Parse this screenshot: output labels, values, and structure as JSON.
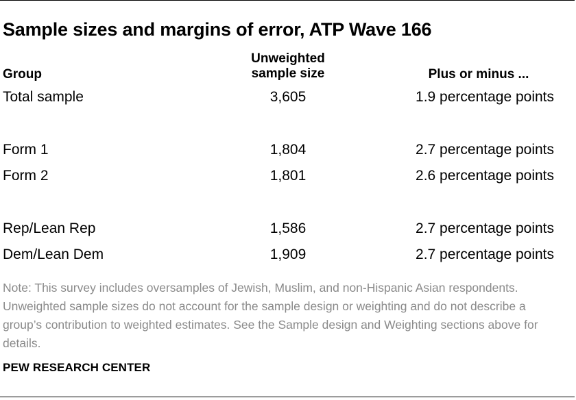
{
  "title": "Sample sizes and margins of error, ATP Wave 166",
  "table": {
    "headers": {
      "group": "Group",
      "size_line1": "Unweighted",
      "size_line2": "sample size",
      "moe": "Plus or minus ..."
    },
    "rows": [
      {
        "group": "Total sample",
        "size": "3,605",
        "moe": "1.9 percentage points"
      },
      {
        "group": "Form 1",
        "size": "1,804",
        "moe": "2.7 percentage points"
      },
      {
        "group": "Form 2",
        "size": "1,801",
        "moe": "2.6 percentage points"
      },
      {
        "group": "Rep/Lean Rep",
        "size": "1,586",
        "moe": "2.7 percentage points"
      },
      {
        "group": "Dem/Lean Dem",
        "size": "1,909",
        "moe": "2.7 percentage points"
      }
    ]
  },
  "note": "Note: This survey includes oversamples of Jewish, Muslim, and non-Hispanic Asian respondents. Unweighted sample sizes do not account for the sample design or weighting and do not describe a group’s contribution to weighted estimates. See the Sample design and Weighting sections above for details.",
  "source": "PEW RESEARCH CENTER"
}
